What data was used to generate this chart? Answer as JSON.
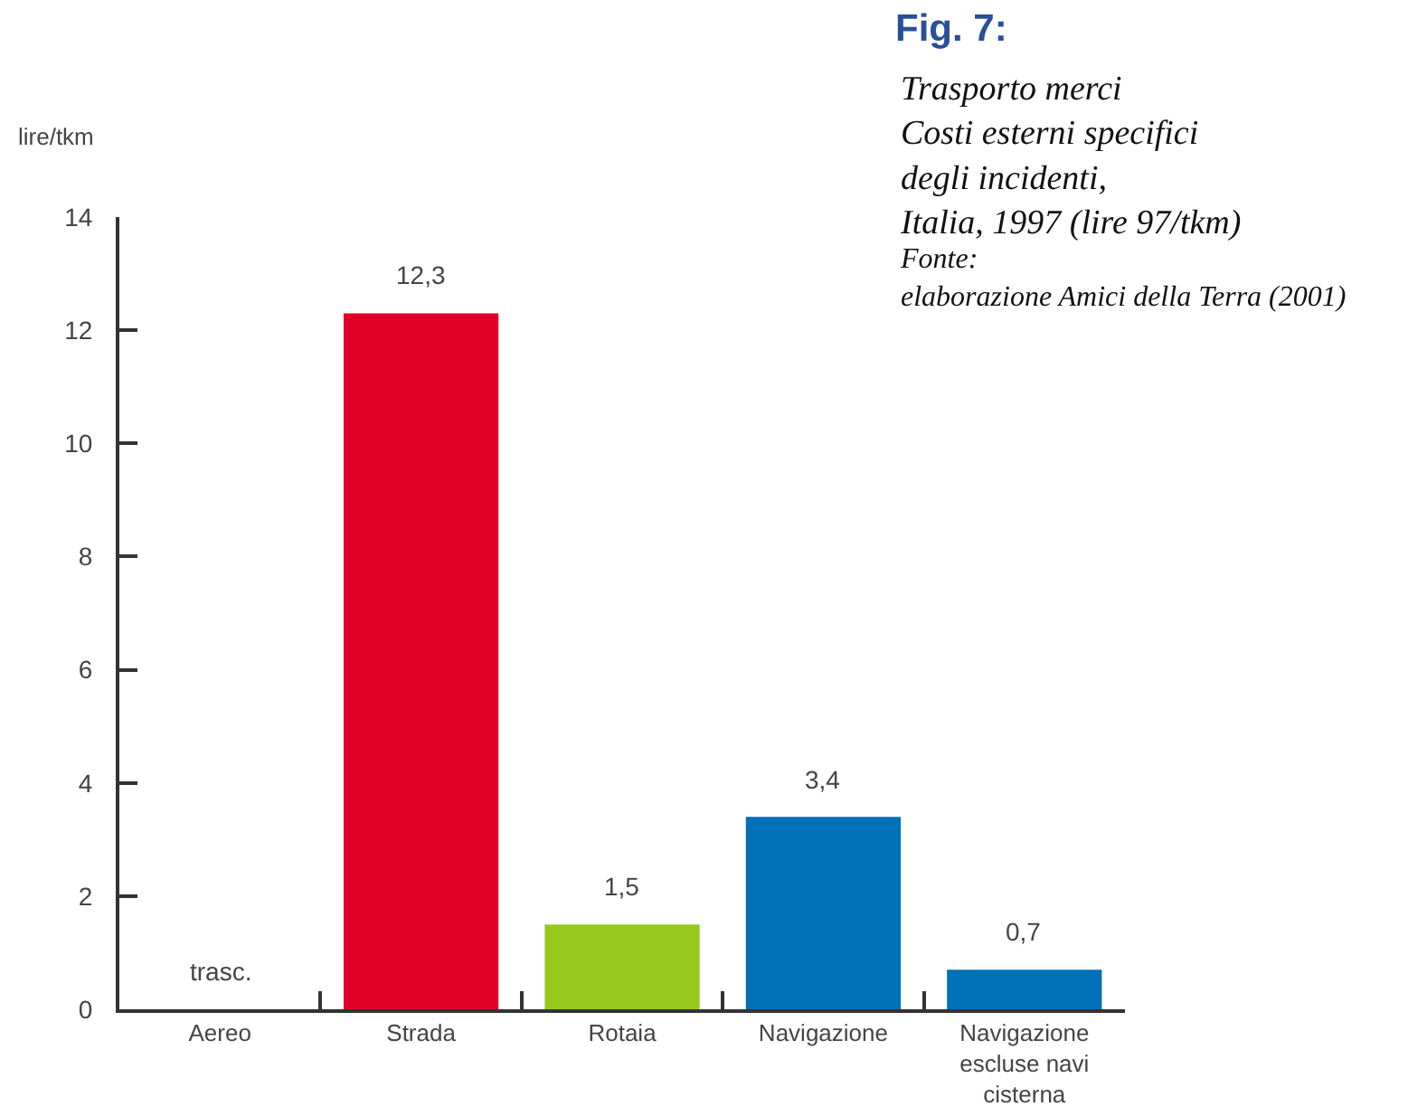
{
  "chart_data": {
    "type": "bar",
    "title": "Fig. 7:",
    "subtitle": "Trasporto merci\nCosti esterni specifici\ndegli incidenti,\nItalia, 1997 (lire 97/tkm)",
    "annotations": [
      "Fonte:\nelaborazione Amici della Terra (2001)"
    ],
    "ylabel": "lire/tkm",
    "categories": [
      "Aereo",
      "Strada",
      "Rotaia",
      "Navigazione",
      "Navigazione escluse navi cisterna"
    ],
    "values": [
      null,
      12.3,
      1.5,
      3.4,
      0.7
    ],
    "colors": [
      null,
      "#e00028",
      "#96c81e",
      "#0070b8",
      "#0070b8"
    ],
    "value_labels": [
      "trasc.",
      "12,3",
      "1,5",
      "3,4",
      "0,7"
    ],
    "ylim": [
      0,
      14
    ],
    "yticks": [
      0,
      2,
      4,
      6,
      8,
      10,
      12,
      14
    ]
  }
}
